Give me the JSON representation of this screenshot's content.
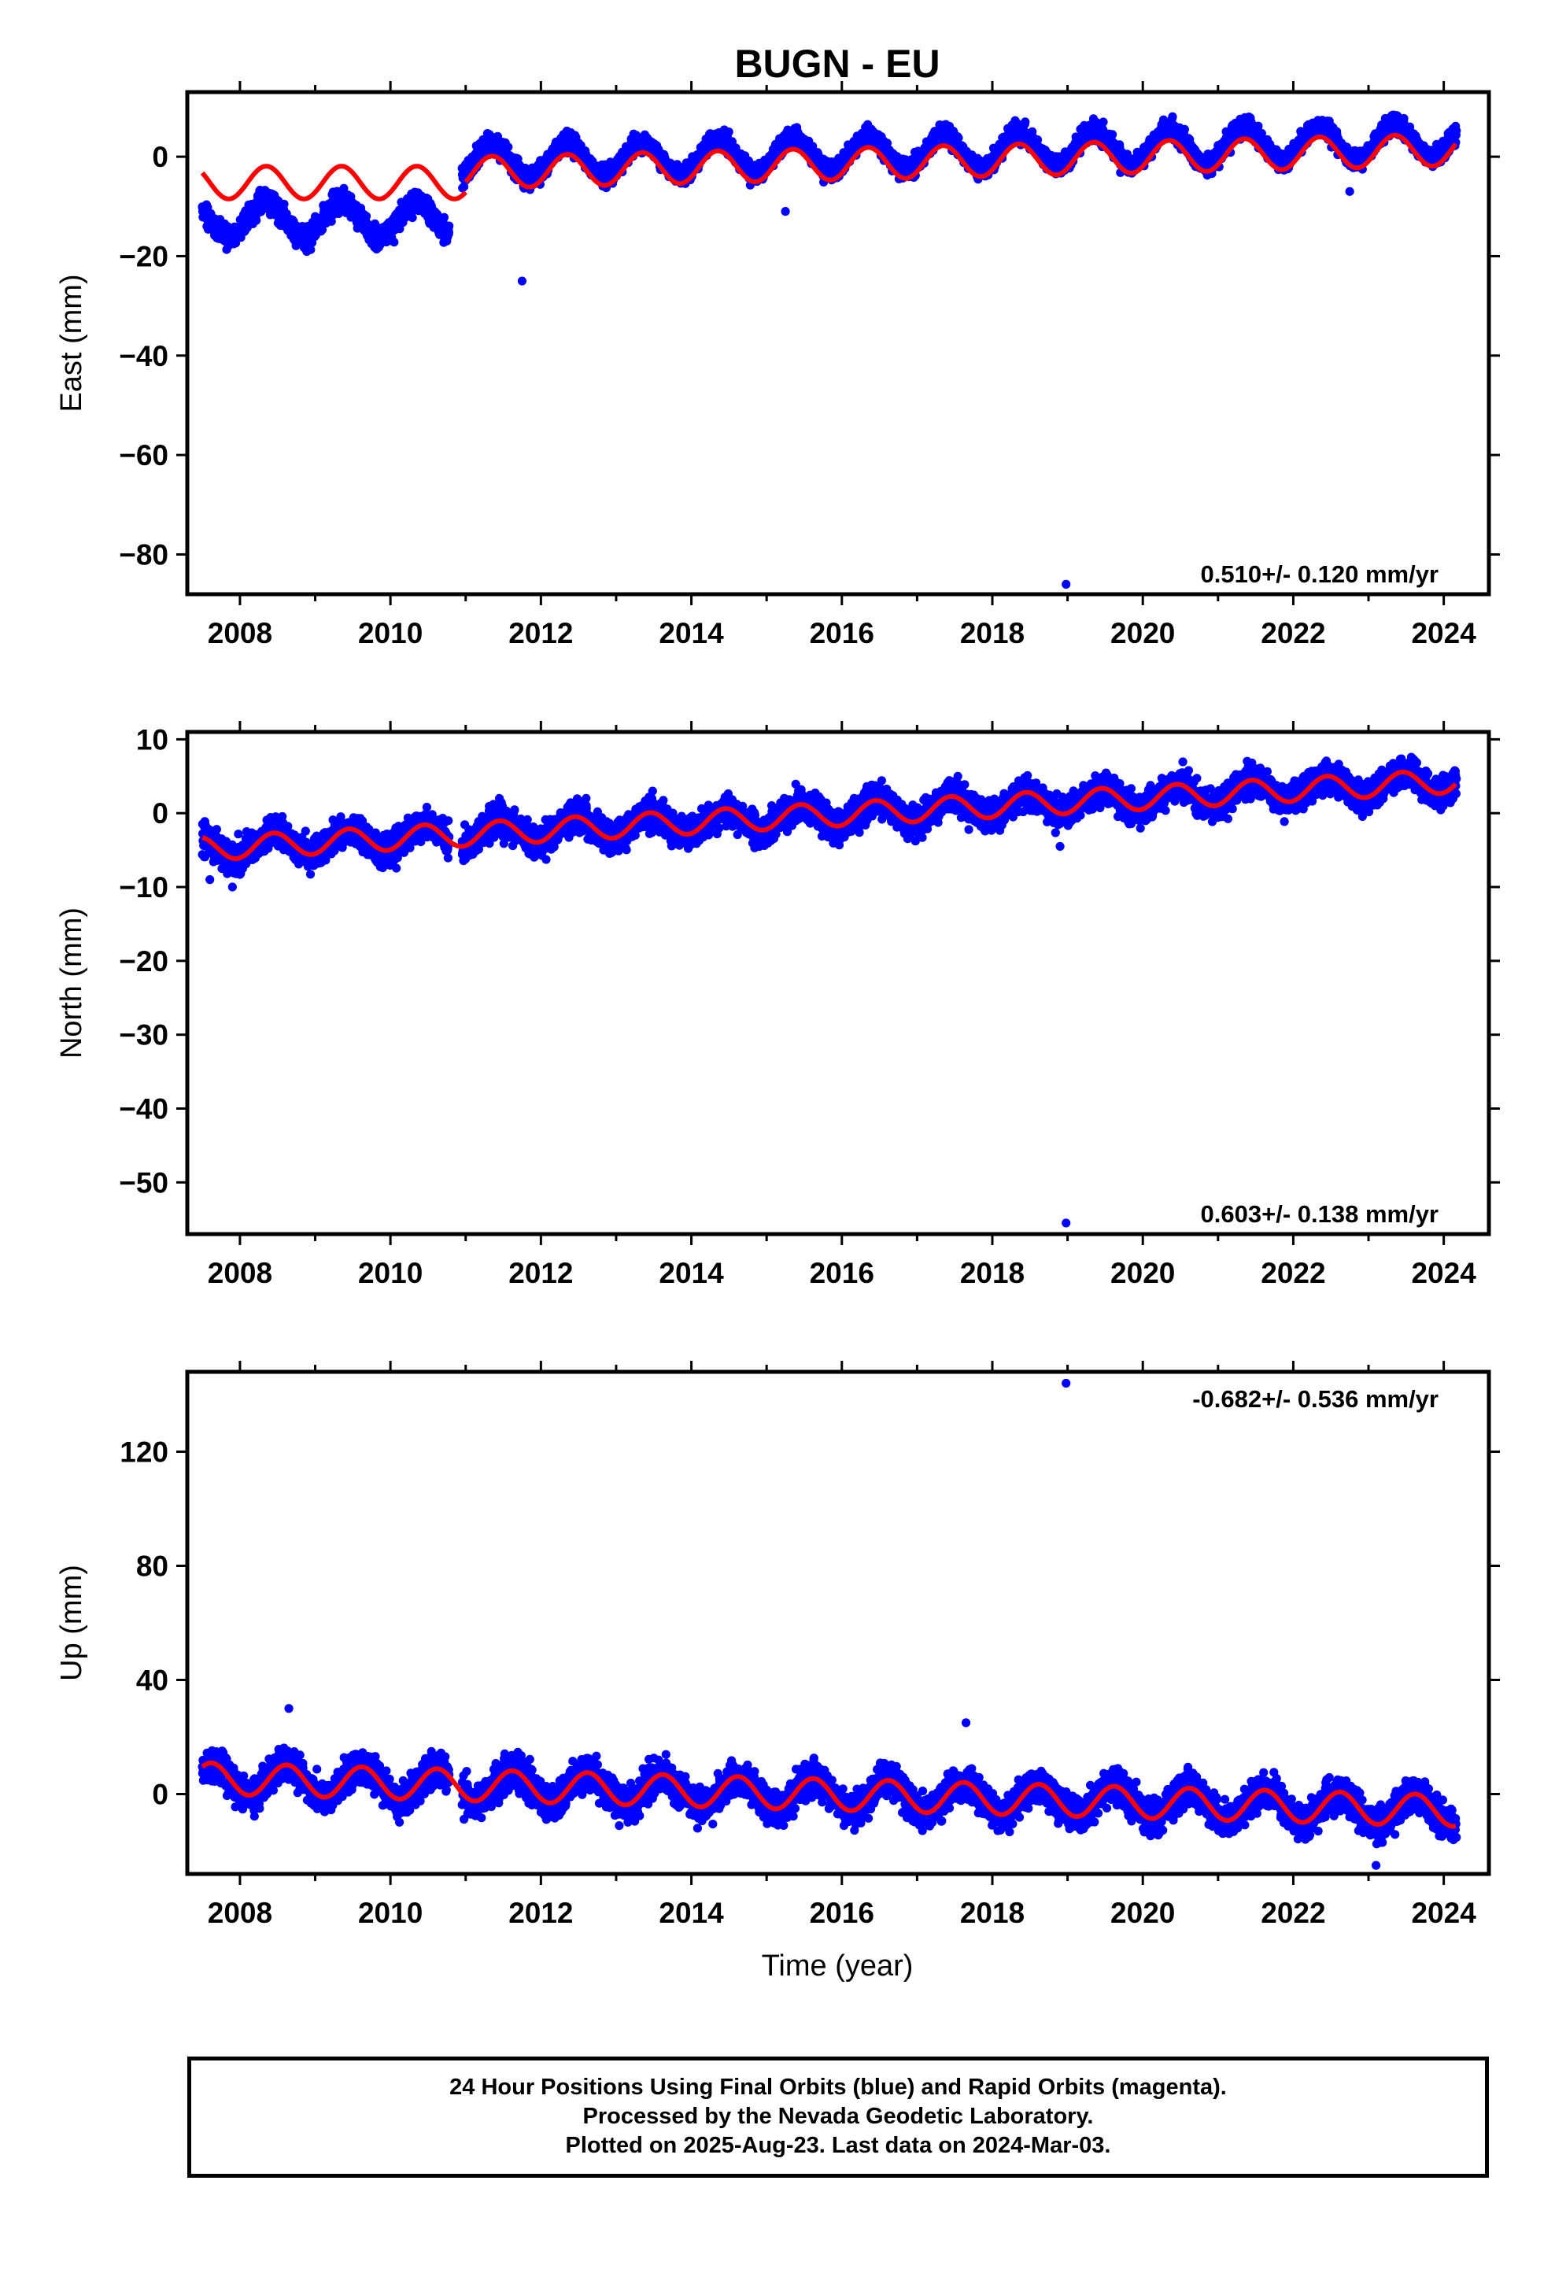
{
  "title": "BUGN - EU",
  "xlabel": "Time (year)",
  "colors": {
    "data": "#0000ff",
    "model": "#ff0000",
    "frame": "#000000"
  },
  "caption": [
    "24 Hour Positions Using Final Orbits (blue) and Rapid Orbits (magenta).",
    "Processed by the Nevada Geodetic Laboratory.",
    "Plotted on 2025-Aug-23. Last data on 2024-Mar-03."
  ],
  "chart_data": [
    {
      "type": "scatter",
      "panel": "east",
      "ylabel": "East (mm)",
      "rate_label": "0.510+/- 0.120 mm/yr",
      "rate_label_position": "bottom-right",
      "xlim": [
        2007.3,
        2024.6
      ],
      "ylim": [
        -88,
        13
      ],
      "x_ticks": [
        2008,
        2010,
        2012,
        2014,
        2016,
        2018,
        2020,
        2022,
        2024
      ],
      "y_ticks": [
        0,
        -20,
        -40,
        -60,
        -80
      ],
      "data_span": [
        2007.5,
        2024.17
      ],
      "gaps": [
        [
          2010.78,
          2010.95
        ]
      ],
      "series": [
        {
          "name": "24 Hour Positions (Final Orbits)",
          "color": "#0000ff",
          "segments": [
            {
              "from": 2007.5,
              "to": 2010.8,
              "offset": -12.5,
              "rate": 0,
              "amplitude": 3.5,
              "phase_year": 2008.35,
              "scatter": 1.6
            },
            {
              "from": 2010.95,
              "to": 2024.17,
              "offset": -1.2,
              "rate": 0.35,
              "amplitude": 3.5,
              "phase_year": 2011.35,
              "scatter": 1.4
            }
          ],
          "outliers": [
            {
              "x": 2011.75,
              "y": -25
            },
            {
              "x": 2015.25,
              "y": -11
            },
            {
              "x": 2018.98,
              "y": -86
            },
            {
              "x": 2022.75,
              "y": -7
            }
          ]
        },
        {
          "name": "model",
          "color": "#ff0000",
          "segments": [
            {
              "from": 2007.5,
              "to": 2011.0,
              "offset": -5.2,
              "rate": 0,
              "amplitude": 3.3,
              "phase_year": 2008.35
            },
            {
              "from": 2011.0,
              "to": 2024.17,
              "offset": -3.2,
              "rate": 0.35,
              "amplitude": 3.2,
              "phase_year": 2011.35
            }
          ]
        }
      ]
    },
    {
      "type": "scatter",
      "panel": "north",
      "ylabel": "North (mm)",
      "rate_label": "0.603+/- 0.138 mm/yr",
      "rate_label_position": "bottom-right",
      "xlim": [
        2007.3,
        2024.6
      ],
      "ylim": [
        -57,
        11
      ],
      "x_ticks": [
        2008,
        2010,
        2012,
        2014,
        2016,
        2018,
        2020,
        2022,
        2024
      ],
      "y_ticks": [
        10,
        0,
        -10,
        -20,
        -30,
        -40,
        -50
      ],
      "data_span": [
        2007.5,
        2024.17
      ],
      "gaps": [
        [
          2010.78,
          2010.95
        ]
      ],
      "series": [
        {
          "name": "24 Hour Positions (Final Orbits)",
          "color": "#0000ff",
          "segments": [
            {
              "from": 2007.5,
              "to": 2024.17,
              "offset": -4.8,
              "rate": 0.55,
              "amplitude": 1.6,
              "phase_year": 2008.45,
              "scatter": 1.5
            }
          ],
          "outliers": [
            {
              "x": 2007.6,
              "y": -9
            },
            {
              "x": 2007.9,
              "y": -10
            },
            {
              "x": 2018.9,
              "y": -4.5
            },
            {
              "x": 2018.98,
              "y": -55.5
            }
          ]
        },
        {
          "name": "model",
          "color": "#ff0000",
          "segments": [
            {
              "from": 2007.5,
              "to": 2024.17,
              "offset": -4.8,
              "rate": 0.55,
              "amplitude": 1.6,
              "phase_year": 2008.45
            }
          ]
        }
      ]
    },
    {
      "type": "scatter",
      "panel": "up",
      "ylabel": "Up (mm)",
      "rate_label": "-0.682+/- 0.536 mm/yr",
      "rate_label_position": "top-right",
      "xlim": [
        2007.3,
        2024.6
      ],
      "ylim": [
        -28,
        148
      ],
      "x_ticks": [
        2008,
        2010,
        2012,
        2014,
        2016,
        2018,
        2020,
        2022,
        2024
      ],
      "y_ticks": [
        0,
        40,
        80,
        120
      ],
      "data_span": [
        2007.5,
        2024.17
      ],
      "gaps": [
        [
          2010.78,
          2010.95
        ]
      ],
      "series": [
        {
          "name": "24 Hour Positions (Final Orbits)",
          "color": "#0000ff",
          "segments": [
            {
              "from": 2007.5,
              "to": 2024.17,
              "offset": 5.5,
              "rate": -0.68,
              "amplitude": 5.5,
              "phase_year": 2008.62,
              "scatter": 4.2
            }
          ],
          "outliers": [
            {
              "x": 2008.65,
              "y": 30
            },
            {
              "x": 2017.65,
              "y": 25
            },
            {
              "x": 2018.98,
              "y": 144
            },
            {
              "x": 2023.1,
              "y": -25
            }
          ]
        },
        {
          "name": "model",
          "color": "#ff0000",
          "segments": [
            {
              "from": 2007.5,
              "to": 2024.17,
              "offset": 5.5,
              "rate": -0.68,
              "amplitude": 5.5,
              "phase_year": 2008.62
            }
          ]
        }
      ]
    }
  ]
}
